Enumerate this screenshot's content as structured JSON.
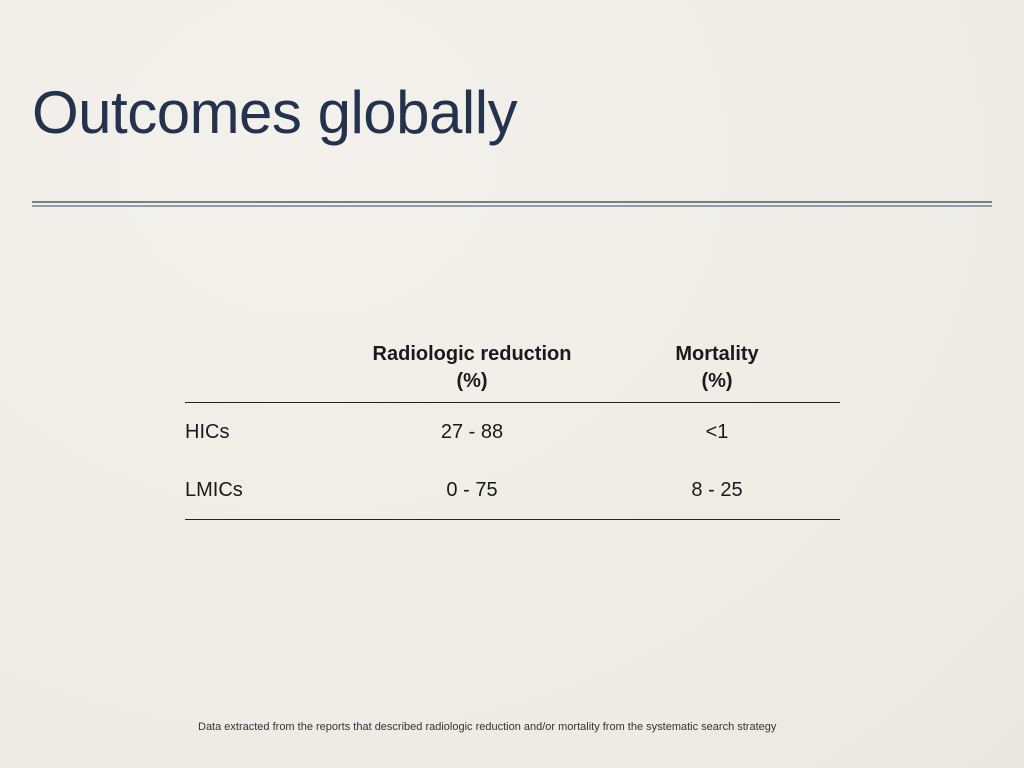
{
  "slide": {
    "title": "Outcomes globally",
    "colors": {
      "title": "#23334d",
      "rule_top": "#7a7f85",
      "rule_bottom": "#8d9bb0",
      "background": "#f0ede7"
    }
  },
  "table": {
    "headers": [
      {
        "line1": "",
        "line2": ""
      },
      {
        "line1": "Radiologic reduction",
        "line2": "(%)"
      },
      {
        "line1": "Mortality",
        "line2": "(%)"
      }
    ],
    "rows": [
      {
        "label": "HICs",
        "radiologic_reduction": "27 - 88",
        "mortality": "<1"
      },
      {
        "label": "LMICs",
        "radiologic_reduction": "0 - 75",
        "mortality": "8 - 25"
      }
    ]
  },
  "footnote": "Data extracted from the reports that described radiologic reduction and/or mortality from the systematic search strategy"
}
